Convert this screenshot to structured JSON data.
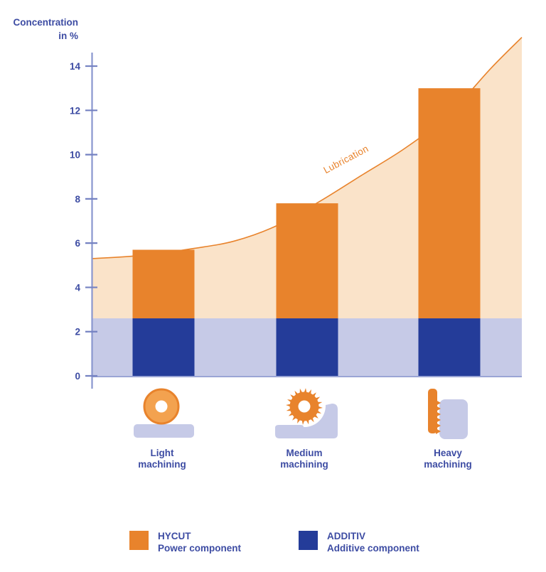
{
  "chart_data": {
    "type": "bar",
    "title": "Concentration in %",
    "ylabel_line1": "Concentration",
    "ylabel_line2": "in %",
    "yticks": [
      0,
      2,
      4,
      6,
      8,
      10,
      12,
      14
    ],
    "ylim": [
      0,
      15.5
    ],
    "grid": false,
    "legend_position": "bottom",
    "categories": [
      "Light machining",
      "Medium machining",
      "Heavy machining"
    ],
    "series": [
      {
        "name": "ADDITIV Additive component",
        "values": [
          2.6,
          2.6,
          2.6
        ],
        "color": "#243C99"
      },
      {
        "name": "HYCUT Power component",
        "values": [
          3.1,
          5.2,
          10.4
        ],
        "color": "#E8832C"
      }
    ],
    "bar_totals": [
      5.7,
      7.8,
      13.0
    ],
    "band": {
      "from": 0,
      "to": 2.6,
      "color": "#C6CAE7"
    },
    "area_series": {
      "name": "Lubrication",
      "fill": "#FAE3C9",
      "line": "#E8832C",
      "points_frac_x": [
        0,
        0.117,
        0.233,
        0.332,
        0.431,
        0.531,
        0.63,
        0.729,
        0.829,
        0.928,
        1.0
      ],
      "points_y": [
        5.3,
        5.45,
        5.75,
        6.1,
        6.8,
        7.9,
        9.1,
        10.3,
        11.8,
        13.9,
        15.3
      ]
    }
  },
  "labels": {
    "bars": [
      {
        "l1": "Light",
        "l2": "machining"
      },
      {
        "l1": "Medium",
        "l2": "machining"
      },
      {
        "l1": "Heavy",
        "l2": "machining"
      }
    ],
    "lubrication": "Lubrication"
  },
  "legend": [
    {
      "title": "HYCUT",
      "subtitle": "Power component",
      "color": "#E8832C"
    },
    {
      "title": "ADDITIV",
      "subtitle": "Additive component",
      "color": "#243C99"
    }
  ],
  "colors": {
    "axis": "#8A97CF",
    "tick": "#7582C2",
    "baseline": "#9AA5D5",
    "text": "#3D4CA3",
    "orange": "#E8832C",
    "orange_light": "#F3A24F",
    "area_fill": "#FAE3C9",
    "dark_blue": "#243C99",
    "lavender": "#C6CAE7"
  }
}
